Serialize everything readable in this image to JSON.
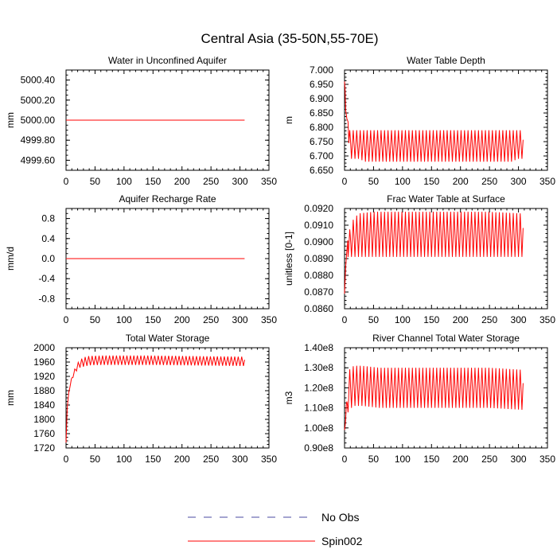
{
  "figure": {
    "title": "Central Asia (35-50N,55-70E)",
    "legend": [
      {
        "label": "No Obs",
        "style": "dashed",
        "color": "#4a4aa0"
      },
      {
        "label": "Spin002",
        "style": "solid",
        "color": "#ff0000"
      }
    ]
  },
  "chart_data": [
    {
      "type": "line",
      "title": "Water in Unconfined Aquifer",
      "ylabel": "mm",
      "xlim": [
        0,
        350
      ],
      "ylim": [
        4999.5,
        5000.5
      ],
      "xticks": [
        0,
        50,
        100,
        150,
        200,
        250,
        300,
        350
      ],
      "yticks": [
        4999.6,
        4999.8,
        5000.0,
        5000.2,
        5000.4
      ],
      "ytick_labels": [
        "4999.60",
        "4999.80",
        "5000.00",
        "5000.20",
        "5000.40"
      ],
      "series": [
        {
          "name": "Spin002",
          "color": "#ff0000",
          "style": "solid",
          "x": [
            0,
            308
          ],
          "y": [
            5000.0,
            5000.0
          ]
        }
      ]
    },
    {
      "type": "line",
      "title": "Water Table Depth",
      "ylabel": "m",
      "xlim": [
        0,
        350
      ],
      "ylim": [
        6.65,
        7.0
      ],
      "xticks": [
        0,
        50,
        100,
        150,
        200,
        250,
        300,
        350
      ],
      "yticks": [
        6.65,
        6.7,
        6.75,
        6.8,
        6.85,
        6.9,
        6.95,
        7.0
      ],
      "ytick_labels": [
        "6.650",
        "6.700",
        "6.750",
        "6.800",
        "6.850",
        "6.900",
        "6.950",
        "7.000"
      ],
      "series": [
        {
          "name": "Spin002",
          "color": "#ff0000",
          "style": "solid",
          "x": [
            0,
            1,
            2,
            4,
            6,
            8,
            12,
            24,
            36,
            48,
            60,
            72,
            84,
            96,
            108,
            120,
            132,
            144,
            156,
            168,
            180,
            192,
            204,
            216,
            228,
            240,
            252,
            264,
            276,
            288,
            300,
            308
          ],
          "y": [
            6.96,
            6.93,
            6.86,
            6.83,
            6.82,
            6.72,
            6.69,
            6.69,
            6.68,
            6.68,
            6.68,
            6.68,
            6.68,
            6.68,
            6.68,
            6.68,
            6.68,
            6.68,
            6.68,
            6.68,
            6.68,
            6.68,
            6.68,
            6.68,
            6.68,
            6.68,
            6.68,
            6.68,
            6.68,
            6.68,
            6.69,
            6.69
          ],
          "cycle_max": 6.79,
          "cycle_min": 6.68,
          "cycle_length": 6
        }
      ]
    },
    {
      "type": "line",
      "title": "Aquifer Recharge Rate",
      "ylabel": "mm/d",
      "xlim": [
        0,
        350
      ],
      "ylim": [
        -1.0,
        1.0
      ],
      "xticks": [
        0,
        50,
        100,
        150,
        200,
        250,
        300,
        350
      ],
      "yticks": [
        -0.8,
        -0.4,
        0.0,
        0.4,
        0.8
      ],
      "ytick_labels": [
        "-0.8",
        "-0.4",
        "0.0",
        "0.4",
        "0.8"
      ],
      "series": [
        {
          "name": "Spin002",
          "color": "#ff0000",
          "style": "solid",
          "x": [
            0,
            308
          ],
          "y": [
            0.0,
            0.0
          ]
        }
      ]
    },
    {
      "type": "line",
      "title": "Frac Water Table at Surface",
      "ylabel": "unitless [0-1]",
      "xlim": [
        0,
        350
      ],
      "ylim": [
        0.086,
        0.092
      ],
      "xticks": [
        0,
        50,
        100,
        150,
        200,
        250,
        300,
        350
      ],
      "yticks": [
        0.086,
        0.087,
        0.088,
        0.089,
        0.09,
        0.091,
        0.092
      ],
      "ytick_labels": [
        "0.0860",
        "0.0870",
        "0.0880",
        "0.0890",
        "0.0900",
        "0.0910",
        "0.0920"
      ],
      "series": [
        {
          "name": "Spin002",
          "color": "#ff0000",
          "style": "solid",
          "x": [
            0,
            2,
            4,
            6,
            12,
            24,
            48,
            96,
            150,
            200,
            250,
            308
          ],
          "y": [
            0.0869,
            0.0885,
            0.0895,
            0.0903,
            0.0912,
            0.0917,
            0.0918,
            0.0918,
            0.0918,
            0.0918,
            0.0918,
            0.0917
          ],
          "cycle_max": 0.0918,
          "cycle_min": 0.0891,
          "cycle_length": 6
        }
      ]
    },
    {
      "type": "line",
      "title": "Total Water Storage",
      "ylabel": "mm",
      "xlim": [
        0,
        350
      ],
      "ylim": [
        1720,
        2000
      ],
      "xticks": [
        0,
        50,
        100,
        150,
        200,
        250,
        300,
        350
      ],
      "yticks": [
        1720,
        1760,
        1800,
        1840,
        1880,
        1920,
        1960,
        2000
      ],
      "ytick_labels": [
        "1720",
        "1760",
        "1800",
        "1840",
        "1880",
        "1920",
        "1960",
        "2000"
      ],
      "series": [
        {
          "name": "Spin002",
          "color": "#ff0000",
          "style": "solid",
          "x": [
            0,
            2,
            5,
            10,
            15,
            20,
            25,
            30,
            40,
            60,
            100,
            150,
            200,
            250,
            308
          ],
          "y": [
            1735,
            1830,
            1880,
            1915,
            1935,
            1950,
            1958,
            1962,
            1966,
            1967,
            1967,
            1967,
            1966,
            1965,
            1964
          ],
          "cycle_max": 1978,
          "cycle_min": 1952,
          "cycle_length": 6
        }
      ]
    },
    {
      "type": "line",
      "title": "River Channel Total Water Storage",
      "ylabel": "m3",
      "xlim": [
        0,
        350
      ],
      "ylim": [
        90000000.0,
        140000000.0
      ],
      "xticks": [
        0,
        50,
        100,
        150,
        200,
        250,
        300,
        350
      ],
      "yticks": [
        90000000.0,
        100000000.0,
        110000000.0,
        120000000.0,
        130000000.0,
        140000000.0
      ],
      "ytick_labels": [
        "0.90e8",
        "1.00e8",
        "1.10e8",
        "1.20e8",
        "1.30e8",
        "1.40e8"
      ],
      "series": [
        {
          "name": "Spin002",
          "color": "#ff0000",
          "style": "solid",
          "x": [
            0,
            2,
            4,
            8,
            16,
            30,
            60,
            150,
            250,
            308
          ],
          "y": [
            99000000.0,
            104000000.0,
            112000000.0,
            120000000.0,
            122000000.0,
            122000000.0,
            121000000.0,
            121000000.0,
            121000000.0,
            120000000.0
          ],
          "cycle_max": 130000000.0,
          "cycle_min": 110000000.0,
          "cycle_length": 6
        }
      ]
    }
  ]
}
